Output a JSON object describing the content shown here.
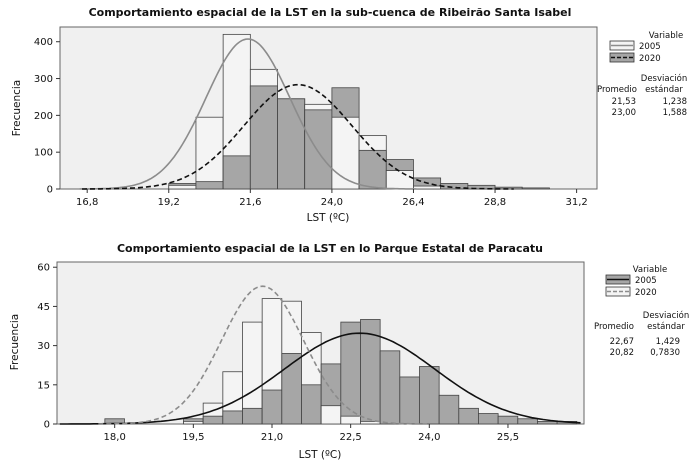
{
  "chart_data": [
    {
      "type": "bar",
      "title": "Comportamiento espacial de la LST en la sub-cuenca de Ribeirão Santa Isabel",
      "xlabel": "LST (ºC)",
      "ylabel": "Frecuencia",
      "xlim": [
        16.0,
        31.8
      ],
      "ylim": [
        0,
        440
      ],
      "xticks": [
        "16,8",
        "19,2",
        "21,6",
        "24,0",
        "26,4",
        "28,8",
        "31,2"
      ],
      "xtick_values": [
        16.8,
        19.2,
        21.6,
        24.0,
        26.4,
        28.8,
        31.2
      ],
      "yticks": [
        0,
        100,
        200,
        300,
        400
      ],
      "bin_width": 0.8,
      "legend": {
        "title": "Variable",
        "entries": [
          "2005",
          "2020"
        ],
        "header_mean": "Promedio",
        "header_sd_1": "Desviación",
        "header_sd_2": "estándar",
        "rows": [
          {
            "mean": "21,53",
            "sd": "1,238"
          },
          {
            "mean": "23,00",
            "sd": "1,588"
          }
        ]
      },
      "series": [
        {
          "name": "2005",
          "color": "#f4f4f4",
          "fit_color": "#8c8c8c",
          "fit_style": "solid",
          "mean": 21.53,
          "sd": 1.238,
          "n": 1580,
          "bins": [
            {
              "x": 19.6,
              "y": 10
            },
            {
              "x": 20.4,
              "y": 195
            },
            {
              "x": 21.2,
              "y": 420
            },
            {
              "x": 22.0,
              "y": 325
            },
            {
              "x": 22.8,
              "y": 245
            },
            {
              "x": 23.6,
              "y": 230
            },
            {
              "x": 24.4,
              "y": 195
            },
            {
              "x": 25.2,
              "y": 145
            },
            {
              "x": 26.0,
              "y": 50
            },
            {
              "x": 26.8,
              "y": 8
            }
          ]
        },
        {
          "name": "2020",
          "color": "#a6a6a6",
          "fit_color": "#111111",
          "fit_style": "dashed",
          "mean": 23.0,
          "sd": 1.588,
          "n": 1410,
          "bins": [
            {
              "x": 19.6,
              "y": 15
            },
            {
              "x": 20.4,
              "y": 20
            },
            {
              "x": 21.2,
              "y": 90
            },
            {
              "x": 22.0,
              "y": 280
            },
            {
              "x": 22.8,
              "y": 245
            },
            {
              "x": 23.6,
              "y": 215
            },
            {
              "x": 24.4,
              "y": 275
            },
            {
              "x": 25.2,
              "y": 105
            },
            {
              "x": 26.0,
              "y": 80
            },
            {
              "x": 26.8,
              "y": 30
            },
            {
              "x": 27.6,
              "y": 15
            },
            {
              "x": 28.4,
              "y": 10
            },
            {
              "x": 29.2,
              "y": 5
            },
            {
              "x": 30.0,
              "y": 3
            }
          ]
        }
      ]
    },
    {
      "type": "bar",
      "title": "Comportamiento espacial de la LST en lo Parque Estatal de Paracatu",
      "xlabel": "LST (ºC)",
      "ylabel": "Frecuencia",
      "xlim": [
        16.9,
        26.95
      ],
      "ylim": [
        0,
        62
      ],
      "xticks": [
        "18,0",
        "19,5",
        "21,0",
        "22,5",
        "24,0",
        "25,5"
      ],
      "xtick_values": [
        18.0,
        19.5,
        21.0,
        22.5,
        24.0,
        25.5
      ],
      "yticks": [
        0,
        15,
        30,
        45,
        60
      ],
      "bin_width": 0.375,
      "legend": {
        "title": "Variable",
        "entries": [
          "2005",
          "2020"
        ],
        "header_mean": "Promedio",
        "header_sd_1": "Desviación",
        "header_sd_2": "estándar",
        "rows": [
          {
            "mean": "22,67",
            "sd": "1,429"
          },
          {
            "mean": "20,82",
            "sd": "0,7830"
          }
        ]
      },
      "series": [
        {
          "name": "2005",
          "color": "#a6a6a6",
          "fit_color": "#111111",
          "fit_style": "solid",
          "mean": 22.67,
          "sd": 1.429,
          "n": 332,
          "bins": [
            {
              "x": 18.0,
              "y": 2
            },
            {
              "x": 19.5,
              "y": 2
            },
            {
              "x": 19.875,
              "y": 3
            },
            {
              "x": 20.25,
              "y": 5
            },
            {
              "x": 20.625,
              "y": 6
            },
            {
              "x": 21.0,
              "y": 13
            },
            {
              "x": 21.375,
              "y": 27
            },
            {
              "x": 21.75,
              "y": 15
            },
            {
              "x": 22.125,
              "y": 23
            },
            {
              "x": 22.5,
              "y": 39
            },
            {
              "x": 22.875,
              "y": 40
            },
            {
              "x": 23.25,
              "y": 28
            },
            {
              "x": 23.625,
              "y": 18
            },
            {
              "x": 24.0,
              "y": 22
            },
            {
              "x": 24.375,
              "y": 11
            },
            {
              "x": 24.75,
              "y": 6
            },
            {
              "x": 25.125,
              "y": 4
            },
            {
              "x": 25.5,
              "y": 3
            },
            {
              "x": 25.875,
              "y": 2
            },
            {
              "x": 26.25,
              "y": 1
            },
            {
              "x": 26.625,
              "y": 1
            }
          ]
        },
        {
          "name": "2020",
          "color": "#f4f4f4",
          "fit_color": "#8c8c8c",
          "fit_style": "dashed",
          "mean": 20.82,
          "sd": 0.783,
          "n": 276,
          "bins": [
            {
              "x": 19.5,
              "y": 1
            },
            {
              "x": 19.875,
              "y": 8
            },
            {
              "x": 20.25,
              "y": 20
            },
            {
              "x": 20.625,
              "y": 39
            },
            {
              "x": 21.0,
              "y": 48
            },
            {
              "x": 21.375,
              "y": 47
            },
            {
              "x": 21.75,
              "y": 35
            },
            {
              "x": 22.125,
              "y": 7
            },
            {
              "x": 22.5,
              "y": 3
            },
            {
              "x": 22.875,
              "y": 1
            }
          ]
        }
      ]
    }
  ]
}
